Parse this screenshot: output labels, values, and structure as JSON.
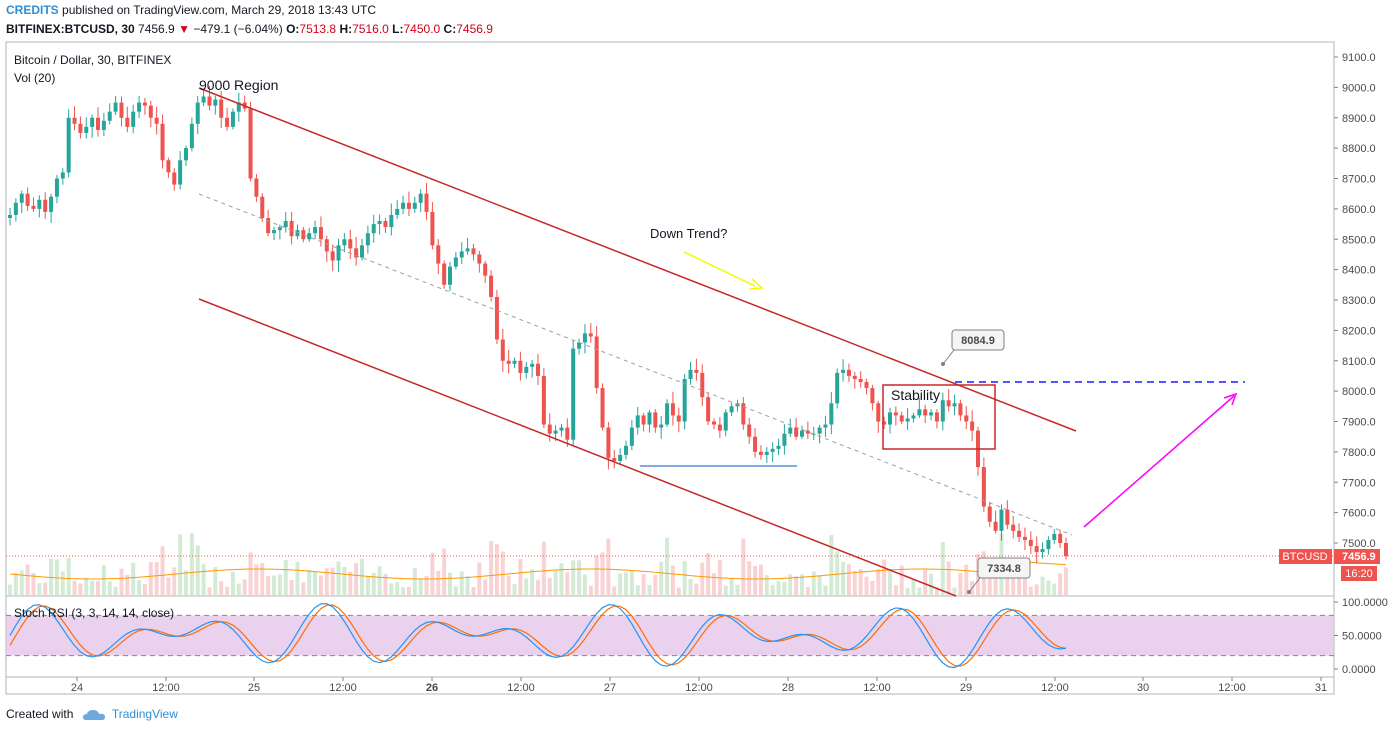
{
  "header": {
    "credits": "CREDITS",
    "published": "published on TradingView.com, March 29, 2018 13:43 UTC",
    "symbol": "BITFINEX:BTCUSD, 30",
    "last": "7456.9",
    "down_arrow": "▼",
    "change": "−479.1 (−6.04%)",
    "o_label": "O:",
    "o_value": "7513.8",
    "h_label": "H:",
    "h_value": "7516.0",
    "l_label": "L:",
    "l_value": "7450.0",
    "c_label": "C:",
    "c_value": "7456.9"
  },
  "legend": {
    "pane_title": "Bitcoin / Dollar, 30, BITFINEX",
    "volume": "Vol (20)",
    "stoch": "Stoch RSI (3, 3, 14, 14, close)"
  },
  "footer": {
    "created_with": "Created with",
    "brand": "TradingView",
    "logo_icon": "tradingview-cloud-icon"
  },
  "colors": {
    "up": "#26a69a",
    "down": "#ef5350",
    "channel": "#c62828",
    "drawing_blue": "#2962ff",
    "arrow_yellow": "#f7f700",
    "arrow_magenta": "#ff00ff",
    "stoch_k": "#2196f3",
    "stoch_d": "#ff6d00",
    "stoch_band": "#e1bee7",
    "price_tag": "#ef5350"
  },
  "chart_data": {
    "type": "candlestick",
    "price_axis": {
      "ticks": [
        "9100.0",
        "9000.0",
        "8900.0",
        "8800.0",
        "8700.0",
        "8600.0",
        "8500.0",
        "8400.0",
        "8300.0",
        "8200.0",
        "8100.0",
        "8000.0",
        "7900.0",
        "7800.0",
        "7700.0",
        "7600.0",
        "7500.0"
      ],
      "range": [
        7330,
        9130
      ]
    },
    "time_axis": {
      "ticks": [
        "24",
        "12:00",
        "25",
        "12:00",
        "26",
        "12:00",
        "27",
        "12:00",
        "28",
        "12:00",
        "29",
        "12:00",
        "30",
        "12:00",
        "31"
      ],
      "bold": [
        "26"
      ]
    },
    "stoch_axis": {
      "ticks": [
        "100.0000",
        "50.0000",
        "0.0000"
      ],
      "range": [
        0,
        100
      ],
      "band": [
        20,
        80
      ]
    },
    "last_price": {
      "label": "BTCUSD",
      "value": "7456.9",
      "countdown": "16:20"
    },
    "annotations": [
      {
        "text": "9000 Region"
      },
      {
        "text": "Down Trend?"
      },
      {
        "text": "Stability"
      },
      {
        "callout": "8084.9"
      },
      {
        "callout": "7334.8"
      }
    ],
    "drawings": {
      "upper_channel": [
        [
          0,
          9000
        ],
        [
          0,
          7880
        ]
      ],
      "lower_channel": [
        [
          0,
          8300
        ],
        [
          0,
          7330
        ]
      ],
      "stability_box": [
        8025,
        7810
      ],
      "resistance_dashed": 8030,
      "support_line": 7750
    },
    "candles_close": [
      8580,
      8620,
      8650,
      8610,
      8600,
      8630,
      8590,
      8640,
      8700,
      8720,
      8900,
      8880,
      8850,
      8870,
      8900,
      8860,
      8890,
      8920,
      8950,
      8900,
      8870,
      8920,
      8950,
      8940,
      8900,
      8880,
      8760,
      8720,
      8680,
      8760,
      8800,
      8880,
      8950,
      8970,
      8940,
      8960,
      8900,
      8870,
      8920,
      8950,
      8930,
      8700,
      8640,
      8570,
      8520,
      8530,
      8540,
      8560,
      8510,
      8530,
      8500,
      8520,
      8540,
      8500,
      8460,
      8430,
      8480,
      8500,
      8470,
      8440,
      8480,
      8520,
      8550,
      8560,
      8540,
      8580,
      8600,
      8620,
      8600,
      8620,
      8650,
      8590,
      8480,
      8420,
      8350,
      8410,
      8440,
      8460,
      8470,
      8450,
      8420,
      8380,
      8310,
      8170,
      8100,
      8090,
      8100,
      8060,
      8080,
      8090,
      8050,
      7890,
      7860,
      7870,
      7880,
      7840,
      8140,
      8160,
      8190,
      8180,
      8010,
      7880,
      7780,
      7770,
      7790,
      7820,
      7880,
      7920,
      7890,
      7930,
      7880,
      7890,
      7960,
      7920,
      7900,
      8040,
      8070,
      8060,
      7980,
      7900,
      7890,
      7870,
      7930,
      7950,
      7960,
      7890,
      7850,
      7800,
      7790,
      7800,
      7810,
      7820,
      7860,
      7880,
      7850,
      7870,
      7860,
      7860,
      7880,
      7890,
      7960,
      8060,
      8070,
      8050,
      8040,
      8030,
      8010,
      7960,
      7900,
      7890,
      7930,
      7920,
      7900,
      7910,
      7920,
      7940,
      7920,
      7930,
      7900,
      7970,
      7950,
      7960,
      7920,
      7900,
      7870,
      7750,
      7620,
      7570,
      7540,
      7610,
      7560,
      7540,
      7520,
      7510,
      7490,
      7470,
      7480,
      7510,
      7530,
      7500,
      7456.9
    ]
  }
}
